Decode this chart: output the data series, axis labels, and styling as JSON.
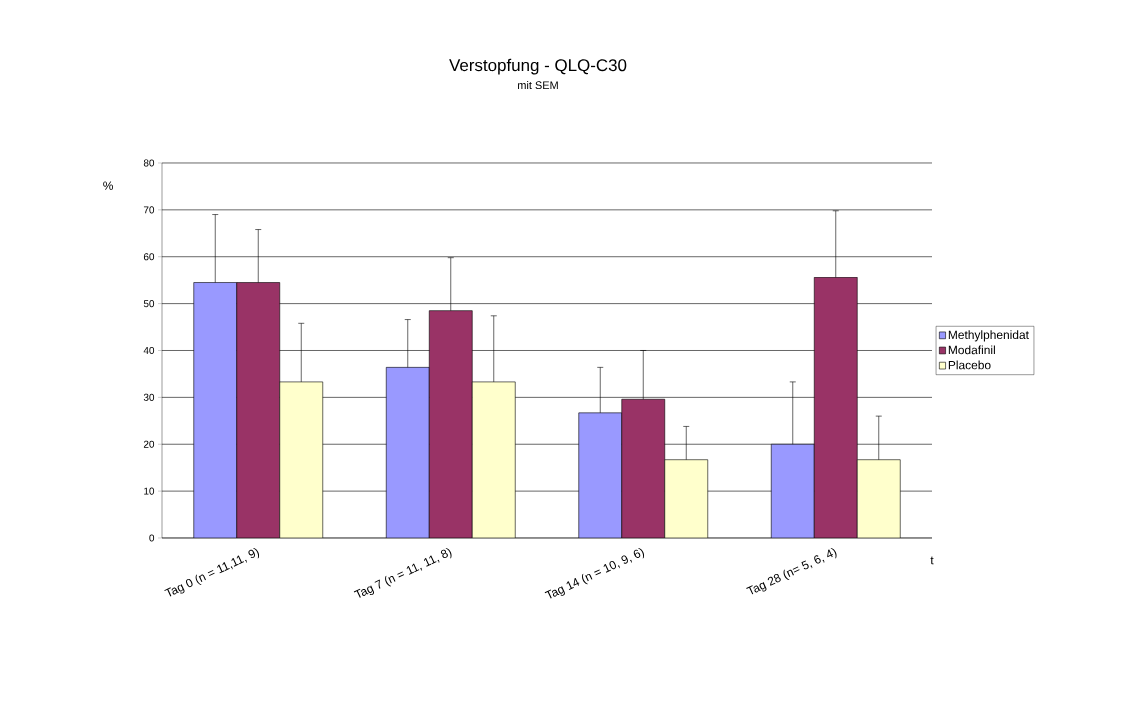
{
  "chart_data": {
    "type": "bar",
    "title": "Verstopfung - QLQ-C30",
    "subtitle": "mit SEM",
    "ylabel": "%",
    "xlabel": "t",
    "categories": [
      "Tag 0 (n = 11,11, 9)",
      "Tag 7 (n = 11, 11, 8)",
      "Tag 14 (n = 10, 9, 6)",
      "Tag 28 (n= 5, 6, 4)"
    ],
    "series": [
      {
        "name": "Methylphenidat",
        "color": "#9999ff",
        "values": [
          54.5,
          36.4,
          26.7,
          20.0
        ],
        "errors": [
          [
            54.5,
            69.0
          ],
          [
            36.4,
            46.6
          ],
          [
            26.7,
            36.4
          ],
          [
            20.0,
            33.3
          ]
        ]
      },
      {
        "name": "Modafinil",
        "color": "#993366",
        "values": [
          54.5,
          48.5,
          29.6,
          55.6
        ],
        "errors": [
          [
            54.5,
            65.8
          ],
          [
            48.5,
            59.8
          ],
          [
            29.6,
            40.0
          ],
          [
            55.6,
            69.8
          ]
        ]
      },
      {
        "name": "Placebo",
        "color": "#ffffcc",
        "values": [
          33.3,
          33.3,
          16.7,
          16.7
        ],
        "errors": [
          [
            33.3,
            45.8
          ],
          [
            33.3,
            47.4
          ],
          [
            16.7,
            23.8
          ],
          [
            16.7,
            26.0
          ]
        ]
      }
    ],
    "ylim": [
      0,
      80
    ],
    "yticks": [
      0,
      10,
      20,
      30,
      40,
      50,
      60,
      70,
      80
    ],
    "grid": "y",
    "legend": "right"
  }
}
